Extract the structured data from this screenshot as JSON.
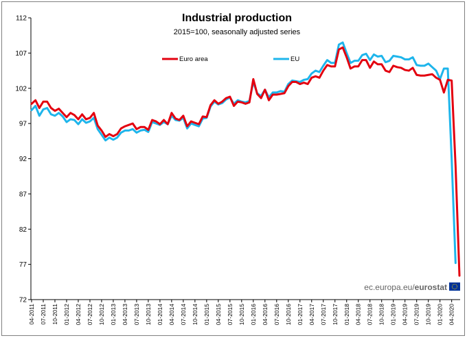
{
  "chart_data": {
    "type": "line",
    "title": "Industrial production",
    "subtitle": "2015=100, seasonally adjusted series",
    "ylim": [
      72,
      112
    ],
    "yticks": [
      72,
      77,
      82,
      87,
      92,
      97,
      102,
      107,
      112
    ],
    "grid": false,
    "legend_position": "top-center",
    "x_tick_labels": [
      "04-2011",
      "07-2011",
      "10-2011",
      "01-2012",
      "04-2012",
      "07-2012",
      "10-2012",
      "01-2013",
      "04-2013",
      "07-2013",
      "10-2013",
      "01-2014",
      "04-2014",
      "07-2014",
      "10-2014",
      "01-2015",
      "04-2015",
      "07-2015",
      "10-2015",
      "01-2016",
      "04-2016",
      "07-2016",
      "10-2016",
      "01-2017",
      "04-2017",
      "07-2017",
      "10-2017",
      "01-2018",
      "04-2018",
      "07-2018",
      "10-2018",
      "01-2019",
      "04-2019",
      "07-2019",
      "10-2019",
      "01-2020",
      "04-2020"
    ],
    "x_start": "04-2011",
    "x_end": "04-2020",
    "series": [
      {
        "name": "Euro area",
        "color": "#e3000f",
        "values": [
          99.8,
          100.3,
          99.2,
          100.1,
          100.1,
          99.2,
          98.8,
          99.1,
          98.5,
          97.9,
          98.5,
          98.2,
          97.6,
          98.3,
          97.6,
          97.8,
          98.5,
          96.7,
          96.0,
          95.1,
          95.5,
          95.2,
          95.5,
          96.3,
          96.6,
          96.8,
          97.0,
          96.2,
          96.5,
          96.5,
          96.1,
          97.5,
          97.3,
          96.9,
          97.5,
          96.9,
          98.5,
          97.7,
          97.5,
          98.1,
          96.6,
          97.3,
          97.1,
          96.9,
          98.0,
          97.9,
          99.6,
          100.3,
          99.8,
          100.1,
          100.6,
          100.8,
          99.5,
          100.1,
          100.0,
          99.8,
          100.0,
          103.3,
          101.2,
          100.6,
          101.8,
          100.3,
          101.1,
          101.1,
          101.2,
          101.3,
          102.3,
          102.9,
          102.9,
          102.6,
          102.8,
          102.6,
          103.5,
          103.7,
          103.5,
          104.5,
          105.3,
          105.1,
          105.1,
          107.5,
          107.8,
          106.4,
          104.8,
          105.1,
          105.1,
          106.0,
          106.0,
          104.9,
          105.8,
          105.4,
          105.4,
          104.5,
          104.3,
          105.2,
          105.0,
          104.9,
          104.6,
          104.5,
          104.9,
          103.9,
          103.8,
          103.8,
          103.9,
          104.0,
          103.5,
          103.2,
          101.4,
          103.2,
          103.1,
          91.0,
          75.4
        ]
      },
      {
        "name": "EU",
        "color": "#1eb5eb",
        "values": [
          98.9,
          99.5,
          98.1,
          99.0,
          99.2,
          98.3,
          98.1,
          98.5,
          98.0,
          97.2,
          97.6,
          97.5,
          96.9,
          97.6,
          97.1,
          97.3,
          97.8,
          96.2,
          95.4,
          94.6,
          95.0,
          94.7,
          95.0,
          95.7,
          96.0,
          96.0,
          96.2,
          95.7,
          96.0,
          96.1,
          95.8,
          97.2,
          97.0,
          96.8,
          97.2,
          96.9,
          98.1,
          97.5,
          97.4,
          97.8,
          96.3,
          97.0,
          96.8,
          96.6,
          97.7,
          97.8,
          99.4,
          100.1,
          99.7,
          99.9,
          100.4,
          100.7,
          99.8,
          100.3,
          100.1,
          100.0,
          100.2,
          102.9,
          101.3,
          100.9,
          101.8,
          100.7,
          101.4,
          101.4,
          101.6,
          101.5,
          102.6,
          103.1,
          103.0,
          102.9,
          103.2,
          103.3,
          104.1,
          104.5,
          104.3,
          105.2,
          106.0,
          105.6,
          105.6,
          108.2,
          108.5,
          107.0,
          105.6,
          105.9,
          105.9,
          106.7,
          106.9,
          106.0,
          106.8,
          106.5,
          106.6,
          105.7,
          105.9,
          106.6,
          106.5,
          106.4,
          106.1,
          106.1,
          106.4,
          105.3,
          105.2,
          105.2,
          105.5,
          105.0,
          104.5,
          103.3,
          104.8,
          104.8,
          92.0,
          77.2
        ]
      }
    ]
  },
  "source_label": {
    "domain": "ec.europa.eu/",
    "brand": "eurostat"
  }
}
